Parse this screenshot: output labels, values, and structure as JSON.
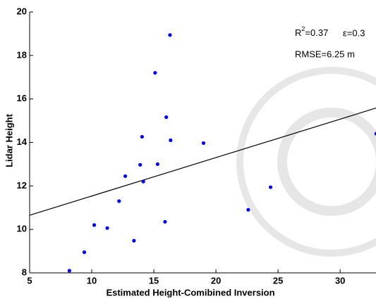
{
  "chart_data": {
    "type": "scatter",
    "x_label": "Estimated Height-Comibined Inversion",
    "y_label": "Lidar Height",
    "xlim": [
      5,
      33
    ],
    "ylim": [
      8,
      20
    ],
    "xticks": [
      5,
      10,
      15,
      20,
      25,
      30
    ],
    "yticks": [
      8,
      10,
      12,
      14,
      16,
      18,
      20
    ],
    "color": "#0000ff",
    "x": [
      8.2,
      9.4,
      10.2,
      11.25,
      13.4,
      12.2,
      12.7,
      13.9,
      14.15,
      14.05,
      15.3,
      15.1,
      16.0,
      16.35,
      16.3,
      15.9,
      19.0,
      22.6,
      24.4,
      32.9
    ],
    "values": [
      8.1,
      8.95,
      10.2,
      10.06,
      9.48,
      11.3,
      12.45,
      12.97,
      12.2,
      14.26,
      13.0,
      17.2,
      15.16,
      14.1,
      18.94,
      10.35,
      13.97,
      10.9,
      11.94,
      14.4
    ],
    "fit_line": {
      "x": [
        5,
        33
      ],
      "y": [
        10.65,
        15.6
      ],
      "color": "#000000"
    },
    "annotations": {
      "r2_base": "R",
      "r2_sup": "2",
      "r2_value": "=0.37",
      "epsilon": "ε=0.3",
      "rmse": "RMSE=6.25 m"
    }
  }
}
